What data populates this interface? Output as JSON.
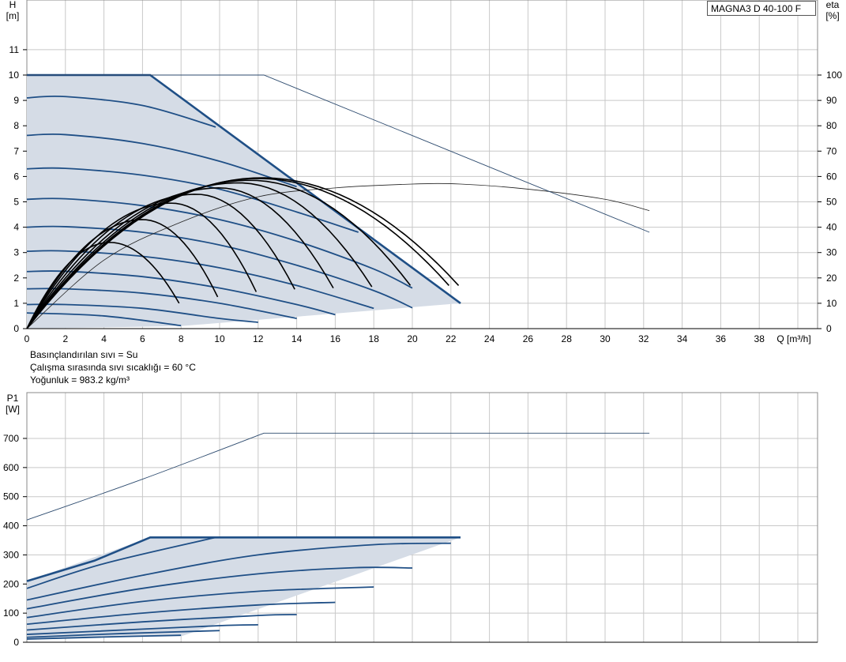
{
  "model_label": "MAGNA3 D 40-100 F",
  "info_lines": [
    "Basınçlandırılan sıvı = Su",
    "Çalışma sırasında sıvı sıcaklığı = 60 °C",
    "Yoğunluk = 983.2 kg/m³"
  ],
  "colors": {
    "envelope": "#1f4f86",
    "fill": "#d5dce6",
    "parabola": "#000000",
    "thin_line": "#2c4a6e",
    "grid": "#c8c8c8"
  },
  "chart_data": [
    {
      "type": "line",
      "title": "",
      "xlabel": "Q [m³/h]",
      "x_unit_label": "Q [m³/h]",
      "ylabel": "H",
      "ylabel_unit": "[m]",
      "y2label": "eta",
      "y2label_unit": "[%]",
      "xlim": [
        0,
        41
      ],
      "ylim": [
        0,
        12
      ],
      "y2lim": [
        0,
        120
      ],
      "x_ticks": [
        0,
        2,
        4,
        6,
        8,
        10,
        12,
        14,
        16,
        18,
        20,
        22,
        24,
        26,
        28,
        30,
        32,
        34,
        36,
        38
      ],
      "y_ticks": [
        0,
        1,
        2,
        3,
        4,
        5,
        6,
        7,
        8,
        9,
        10,
        11
      ],
      "y2_ticks": [
        0,
        10,
        20,
        30,
        40,
        50,
        60,
        70,
        80,
        90,
        100
      ],
      "grid": true,
      "shaded_region": [
        [
          0,
          10
        ],
        [
          6.4,
          10
        ],
        [
          22.5,
          1
        ],
        [
          8,
          0.1
        ],
        [
          0,
          0
        ]
      ],
      "series": [
        {
          "role": "envelope",
          "points": [
            [
              0,
              10
            ],
            [
              6.4,
              10
            ],
            [
              22.5,
              1
            ]
          ]
        },
        {
          "role": "speed",
          "points": [
            [
              0,
              9.1
            ],
            [
              2,
              9.15
            ],
            [
              6,
              8.8
            ],
            [
              9.8,
              7.95
            ]
          ]
        },
        {
          "role": "speed",
          "points": [
            [
              0,
              7.62
            ],
            [
              2,
              7.65
            ],
            [
              6,
              7.3
            ],
            [
              10,
              6.6
            ],
            [
              14,
              5.6
            ]
          ]
        },
        {
          "role": "speed",
          "points": [
            [
              0,
              6.3
            ],
            [
              2,
              6.32
            ],
            [
              6,
              6.05
            ],
            [
              10,
              5.5
            ],
            [
              14,
              4.6
            ],
            [
              17.2,
              3.8
            ]
          ]
        },
        {
          "role": "speed",
          "points": [
            [
              0,
              5.1
            ],
            [
              2,
              5.12
            ],
            [
              6,
              4.85
            ],
            [
              10,
              4.3
            ],
            [
              14,
              3.45
            ],
            [
              18,
              2.35
            ],
            [
              20,
              1.6
            ]
          ]
        },
        {
          "role": "speed",
          "points": [
            [
              0,
              4.0
            ],
            [
              2,
              4.02
            ],
            [
              6,
              3.8
            ],
            [
              10,
              3.3
            ],
            [
              14,
              2.5
            ],
            [
              18,
              1.5
            ],
            [
              20,
              0.82
            ]
          ]
        },
        {
          "role": "speed",
          "points": [
            [
              0,
              3.05
            ],
            [
              2,
              3.06
            ],
            [
              6,
              2.85
            ],
            [
              10,
              2.4
            ],
            [
              14,
              1.7
            ],
            [
              18,
              0.8
            ]
          ]
        },
        {
          "role": "speed",
          "points": [
            [
              0,
              2.25
            ],
            [
              2,
              2.26
            ],
            [
              6,
              2.05
            ],
            [
              10,
              1.6
            ],
            [
              14,
              0.95
            ],
            [
              16,
              0.55
            ]
          ]
        },
        {
          "role": "speed",
          "points": [
            [
              0,
              1.57
            ],
            [
              2,
              1.57
            ],
            [
              6,
              1.4
            ],
            [
              10,
              1.0
            ],
            [
              14,
              0.4
            ]
          ]
        },
        {
          "role": "speed",
          "points": [
            [
              0,
              0.95
            ],
            [
              2,
              0.95
            ],
            [
              6,
              0.8
            ],
            [
              10,
              0.4
            ],
            [
              12,
              0.25
            ]
          ]
        },
        {
          "role": "speed",
          "points": [
            [
              0,
              0.62
            ],
            [
              4,
              0.5
            ],
            [
              8,
              0.12
            ]
          ]
        },
        {
          "role": "efficiency",
          "points": [
            [
              0,
              0
            ],
            [
              4,
              27
            ],
            [
              8,
              42
            ],
            [
              12,
              52
            ],
            [
              16,
              55.5
            ],
            [
              20,
              57
            ],
            [
              22.5,
              57
            ],
            [
              26,
              55
            ],
            [
              30,
              51
            ],
            [
              32.3,
              46.5
            ]
          ]
        },
        {
          "role": "max_head",
          "points": [
            [
              0,
              10
            ],
            [
              12.3,
              10
            ],
            [
              32.3,
              3.8
            ]
          ]
        },
        {
          "role": "efficiency_curve",
          "apex": [
            4.3,
            3.4
          ],
          "end": [
            7.9,
            1.0
          ]
        },
        {
          "role": "efficiency_curve",
          "apex": [
            6.0,
            4.3
          ],
          "end": [
            9.9,
            1.25
          ]
        },
        {
          "role": "efficiency_curve",
          "apex": [
            7.5,
            4.95
          ],
          "end": [
            11.9,
            1.45
          ]
        },
        {
          "role": "efficiency_curve",
          "apex": [
            8.8,
            5.3
          ],
          "end": [
            13.9,
            1.55
          ]
        },
        {
          "role": "efficiency_curve",
          "apex": [
            10.0,
            5.55
          ],
          "end": [
            15.9,
            1.6
          ]
        },
        {
          "role": "efficiency_curve",
          "apex": [
            11.0,
            5.75
          ],
          "end": [
            17.9,
            1.65
          ]
        },
        {
          "role": "efficiency_curve",
          "apex": [
            11.6,
            5.85
          ],
          "end": [
            19.9,
            1.7
          ]
        },
        {
          "role": "efficiency_curve",
          "apex": [
            12.0,
            5.92
          ],
          "end": [
            21.9,
            1.7
          ]
        },
        {
          "role": "efficiency_curve",
          "apex": [
            12.2,
            5.95
          ],
          "end": [
            22.4,
            1.7
          ]
        }
      ]
    },
    {
      "type": "line",
      "title": "",
      "xlabel": "",
      "ylabel": "P1",
      "ylabel_unit": "[W]",
      "xlim": [
        0,
        41
      ],
      "ylim": [
        0,
        800
      ],
      "y_ticks": [
        0,
        100,
        200,
        300,
        400,
        500,
        600,
        700
      ],
      "grid": true,
      "shaded_region": [
        [
          0,
          210
        ],
        [
          6.4,
          360
        ],
        [
          22.5,
          360
        ],
        [
          8,
          20
        ],
        [
          0,
          15
        ]
      ],
      "series": [
        {
          "role": "envelope",
          "points": [
            [
              0,
              210
            ],
            [
              3.5,
              280
            ],
            [
              6.4,
              360
            ],
            [
              22.5,
              360
            ]
          ]
        },
        {
          "role": "max_power",
          "points": [
            [
              0,
              420
            ],
            [
              6,
              560
            ],
            [
              12.3,
              718
            ],
            [
              32.3,
              718
            ]
          ]
        },
        {
          "role": "speed",
          "points": [
            [
              0,
              185
            ],
            [
              4,
              270
            ],
            [
              9.8,
              360
            ]
          ]
        },
        {
          "role": "speed",
          "points": [
            [
              0,
              145
            ],
            [
              6,
              230
            ],
            [
              12,
              300
            ],
            [
              18,
              335
            ],
            [
              22,
              340
            ]
          ]
        },
        {
          "role": "speed",
          "points": [
            [
              0,
              115
            ],
            [
              6,
              185
            ],
            [
              12,
              235
            ],
            [
              17,
              256
            ],
            [
              20,
              255
            ]
          ]
        },
        {
          "role": "speed",
          "points": [
            [
              0,
              85
            ],
            [
              6,
              140
            ],
            [
              12,
              175
            ],
            [
              18,
              190
            ]
          ]
        },
        {
          "role": "speed",
          "points": [
            [
              0,
              62
            ],
            [
              6,
              100
            ],
            [
              12,
              128
            ],
            [
              16,
              137
            ]
          ]
        },
        {
          "role": "speed",
          "points": [
            [
              0,
              42
            ],
            [
              6,
              70
            ],
            [
              12,
              92
            ],
            [
              14,
              95
            ]
          ]
        },
        {
          "role": "speed",
          "points": [
            [
              0,
              27
            ],
            [
              6,
              45
            ],
            [
              10,
              57
            ],
            [
              12,
              60
            ]
          ]
        },
        {
          "role": "speed",
          "points": [
            [
              0,
              17
            ],
            [
              5,
              30
            ],
            [
              10,
              40
            ]
          ]
        },
        {
          "role": "speed",
          "points": [
            [
              0,
              11
            ],
            [
              4,
              18
            ],
            [
              8,
              24
            ]
          ]
        }
      ]
    }
  ]
}
